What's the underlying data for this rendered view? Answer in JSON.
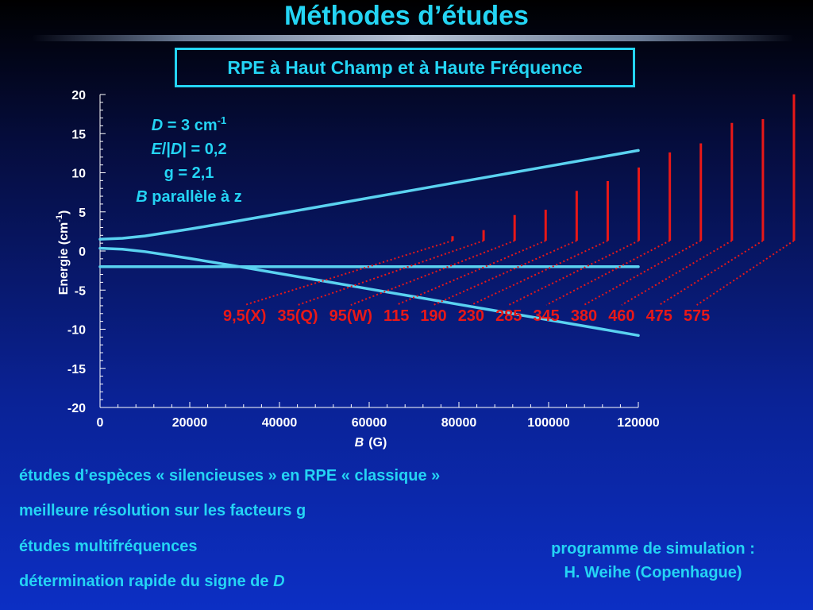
{
  "page": {
    "title": "Méthodes d’études",
    "subtitle": "RPE à Haut Champ et à Haute Fréquence"
  },
  "colors": {
    "accent": "#24d4f4",
    "curve": "#5ad2f0",
    "transition": "#e81818",
    "axis": "#ffffff"
  },
  "chart_data": {
    "type": "line",
    "xlim": [
      0,
      120000
    ],
    "ylim": [
      -20,
      20
    ],
    "xticks": [
      "0",
      "20000",
      "40000",
      "60000",
      "80000",
      "100000",
      "120000"
    ],
    "xtick_values": [
      0,
      20000,
      40000,
      60000,
      80000,
      100000,
      120000
    ],
    "yticks": [
      "20",
      "15",
      "10",
      "5",
      "0",
      "-5",
      "-10",
      "-15",
      "-20"
    ],
    "ytick_values": [
      20,
      15,
      10,
      5,
      0,
      -5,
      -10,
      -15,
      -20
    ],
    "xlabel_italic": "B",
    "xlabel_unit": "(G)",
    "ylabel_main": "Energie  (cm",
    "ylabel_sup": "-1",
    "ylabel_close": ")",
    "grid": false,
    "series": [
      {
        "x": [
          0,
          5000,
          10000,
          20000,
          30000,
          40000,
          50000,
          60000,
          70000,
          80000,
          90000,
          100000,
          110000,
          120000
        ],
        "y": [
          1.5,
          1.62,
          1.92,
          2.8,
          3.77,
          4.77,
          5.78,
          6.79,
          7.8,
          8.81,
          9.82,
          10.83,
          11.84,
          12.85
        ]
      },
      {
        "x": [
          0,
          5000,
          10000,
          20000,
          30000,
          40000,
          50000,
          60000,
          70000,
          80000,
          90000,
          100000,
          110000,
          120000
        ],
        "y": [
          0.35,
          0.22,
          -0.08,
          -0.95,
          -1.9,
          -2.88,
          -3.86,
          -4.85,
          -5.84,
          -6.83,
          -7.82,
          -8.81,
          -9.8,
          -10.79
        ]
      },
      {
        "x": [
          0,
          120000
        ],
        "y": [
          -2.0,
          -2.0
        ]
      }
    ],
    "transitions": [
      {
        "label": "9,5(X)",
        "height": 0.6
      },
      {
        "label": "35(Q)",
        "height": 1.4
      },
      {
        "label": "95(W)",
        "height": 3.4
      },
      {
        "label": "115",
        "height": 4.1
      },
      {
        "label": "190",
        "height": 6.6
      },
      {
        "label": "230",
        "height": 7.9
      },
      {
        "label": "285",
        "height": 9.7
      },
      {
        "label": "345",
        "height": 11.7
      },
      {
        "label": "380",
        "height": 12.9
      },
      {
        "label": "460",
        "height": 15.6
      },
      {
        "label": "475",
        "height": 16.1
      },
      {
        "label": "575",
        "height": 19.4
      }
    ],
    "annotation": {
      "line1_italic": "D",
      "line1_rest": " = 3 cm",
      "line1_sup": "-1",
      "line2_e": "E",
      "line2_sep": "/|",
      "line2_d": "D",
      "line2_rest": "| = 0,2",
      "line3": "g = 2,1",
      "line4_italic": "B",
      "line4_rest": " parallèle à z"
    }
  },
  "bullets": [
    "études d’espèces « silencieuses » en RPE « classique »",
    "meilleure résolution sur les facteurs g",
    "études multifréquences",
    "détermination rapide du signe de "
  ],
  "bullet_last_italic": "D",
  "credits": {
    "line1": "programme de simulation :",
    "line2": "H. Weihe (Copenhague)"
  }
}
